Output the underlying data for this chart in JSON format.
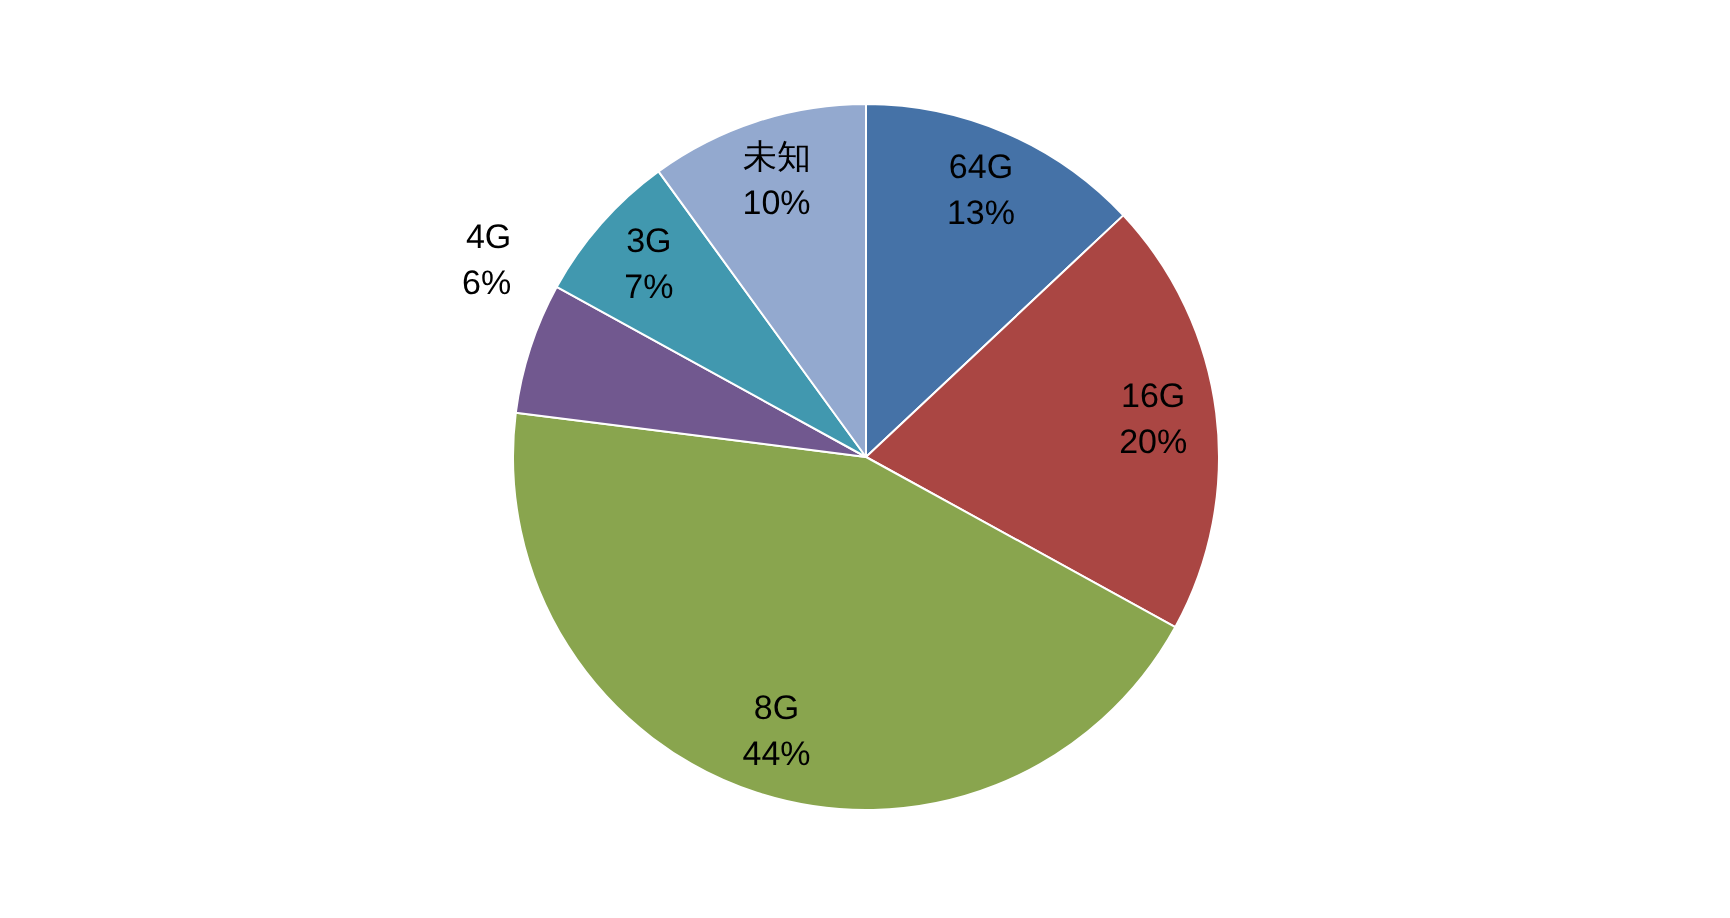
{
  "chart_data": {
    "type": "pie",
    "categories": [
      "64G",
      "16G",
      "8G",
      "4G",
      "3G",
      "未知"
    ],
    "values": [
      13,
      20,
      44,
      6,
      7,
      10
    ],
    "colors": [
      "#4572a7",
      "#aa4643",
      "#89a54e",
      "#71588f",
      "#4198af",
      "#93a9cf"
    ],
    "value_labels": [
      "13%",
      "20%",
      "44%",
      "6%",
      "7%",
      "10%"
    ]
  }
}
